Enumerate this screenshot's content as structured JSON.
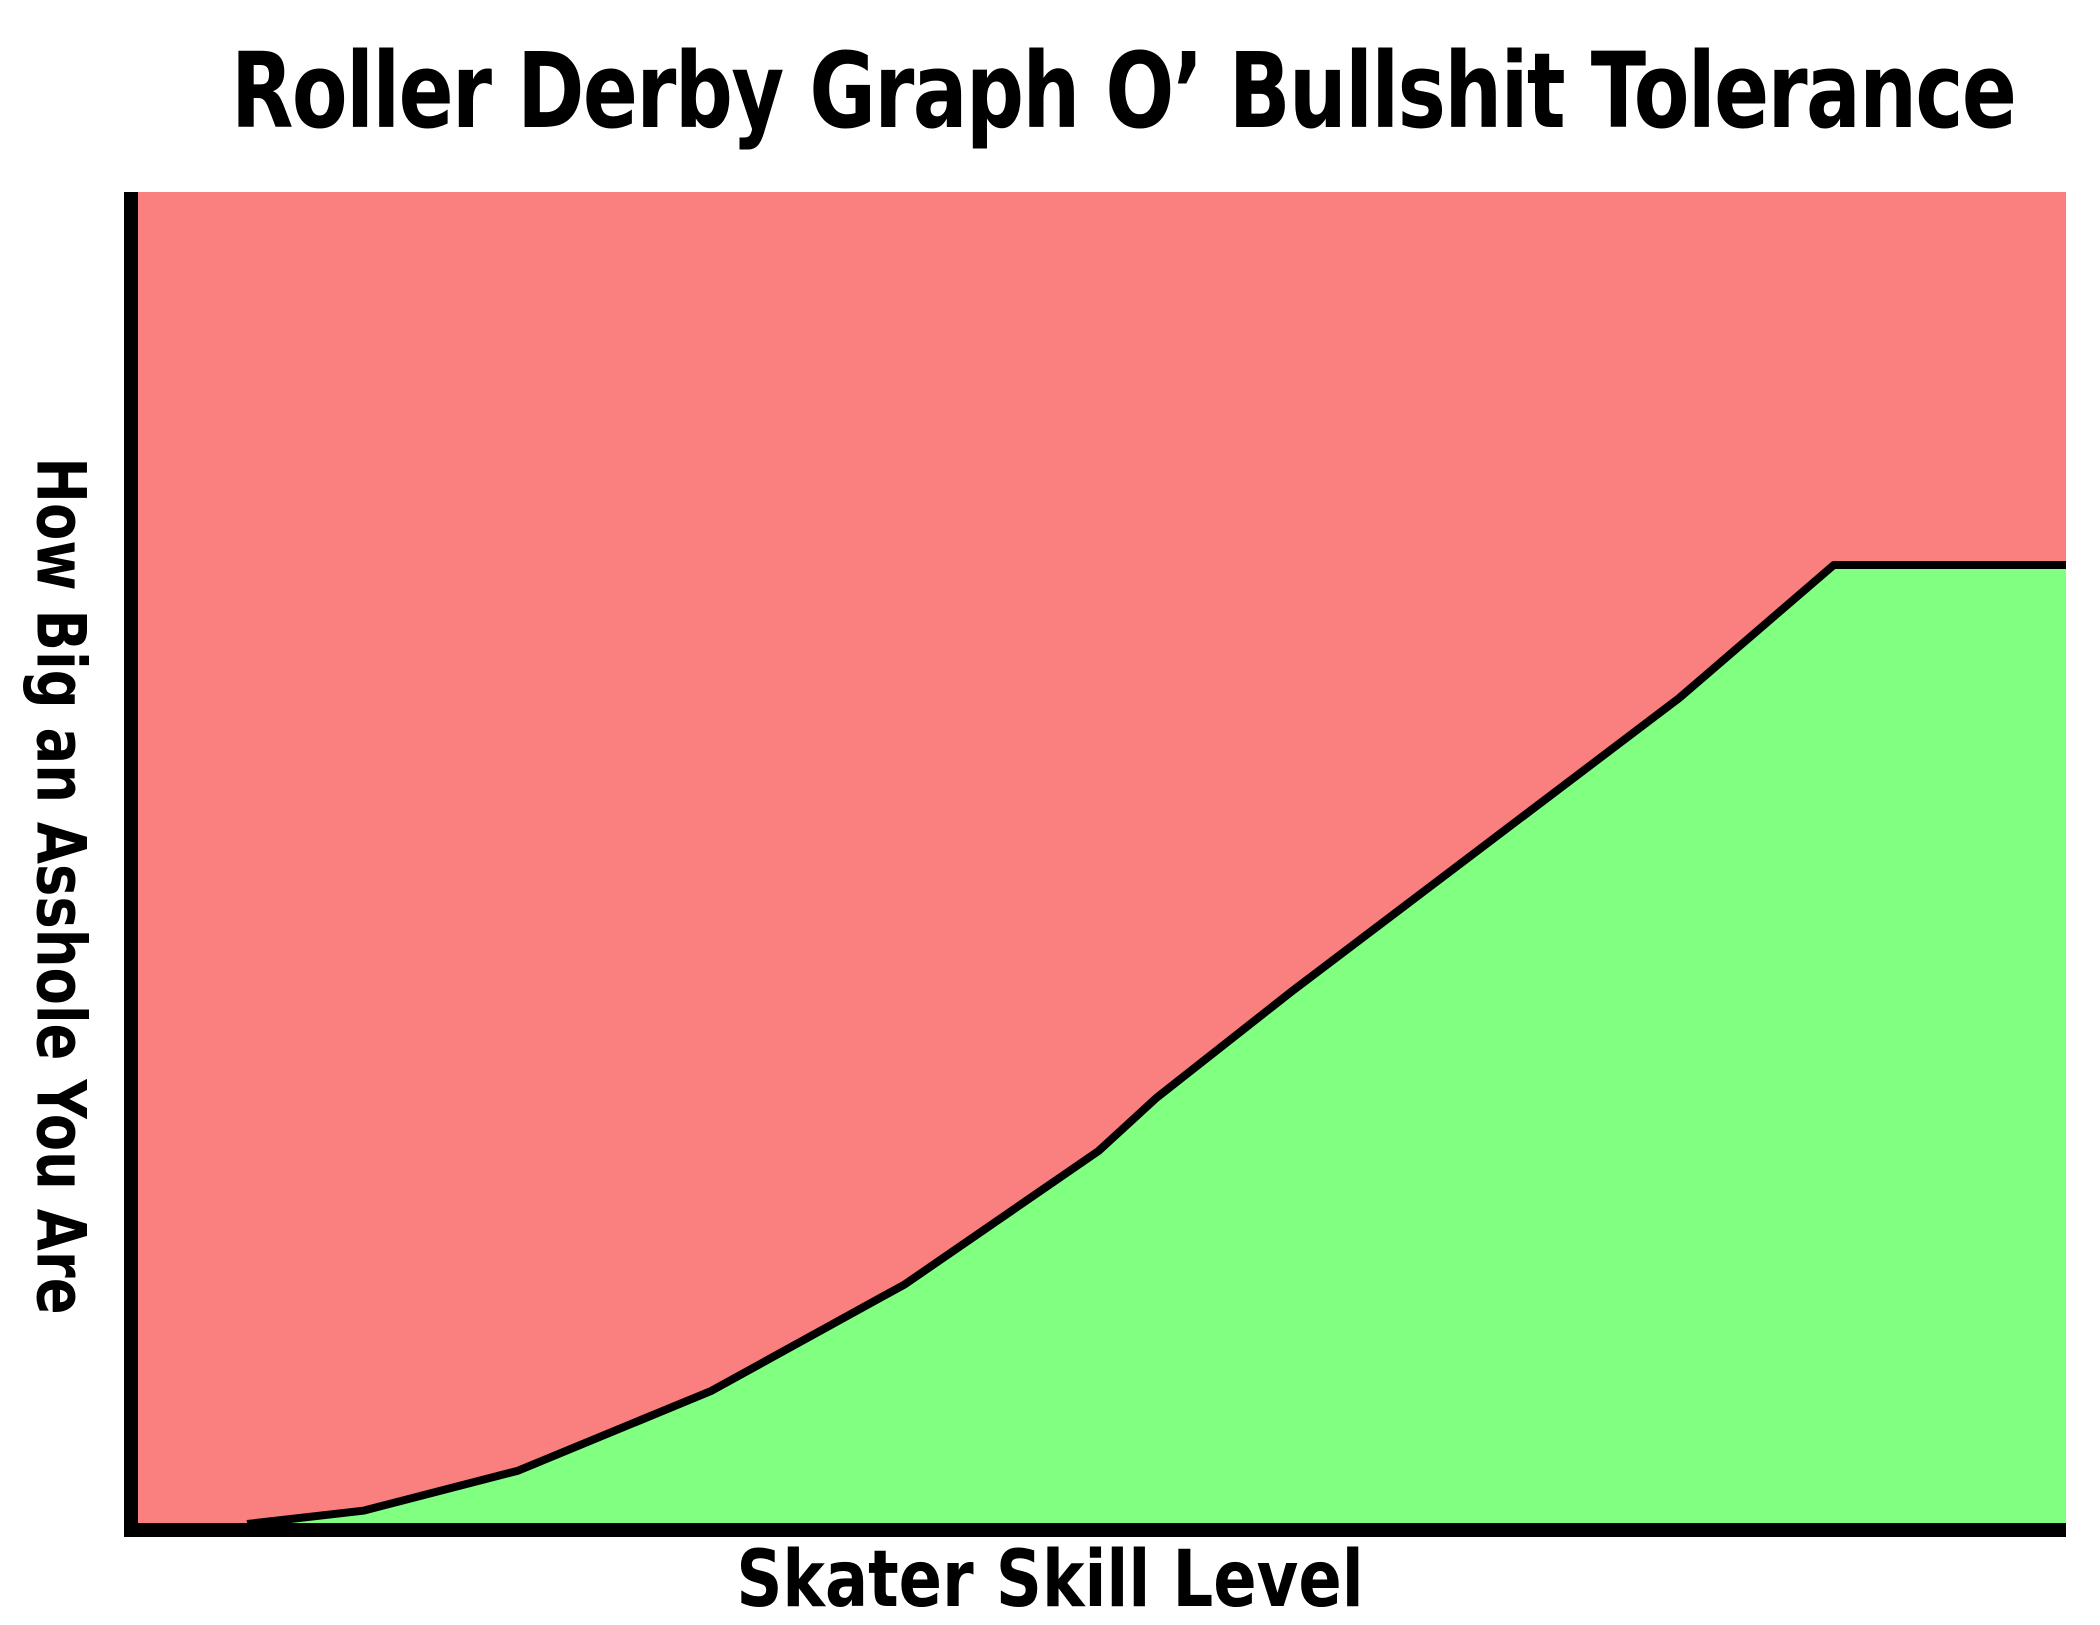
{
  "chart_data": {
    "type": "area",
    "title": "Roller Derby Graph O’ Bullshit Tolerance",
    "xlabel": "Skater Skill Level",
    "ylabel": "How Big an Asshole You Are",
    "xlim": [
      0,
      100
    ],
    "ylim": [
      0,
      100
    ],
    "grid": false,
    "legend": "none",
    "curve": {
      "x": [
        6,
        12,
        20,
        30,
        40,
        50,
        53,
        60,
        70,
        80,
        88,
        94,
        100
      ],
      "y": [
        0,
        1,
        4,
        10,
        18,
        28,
        32,
        40,
        51,
        62,
        72,
        72,
        72
      ]
    },
    "colors": {
      "above": "#fa8080",
      "below": "#80ff80",
      "line": "#000000"
    }
  }
}
